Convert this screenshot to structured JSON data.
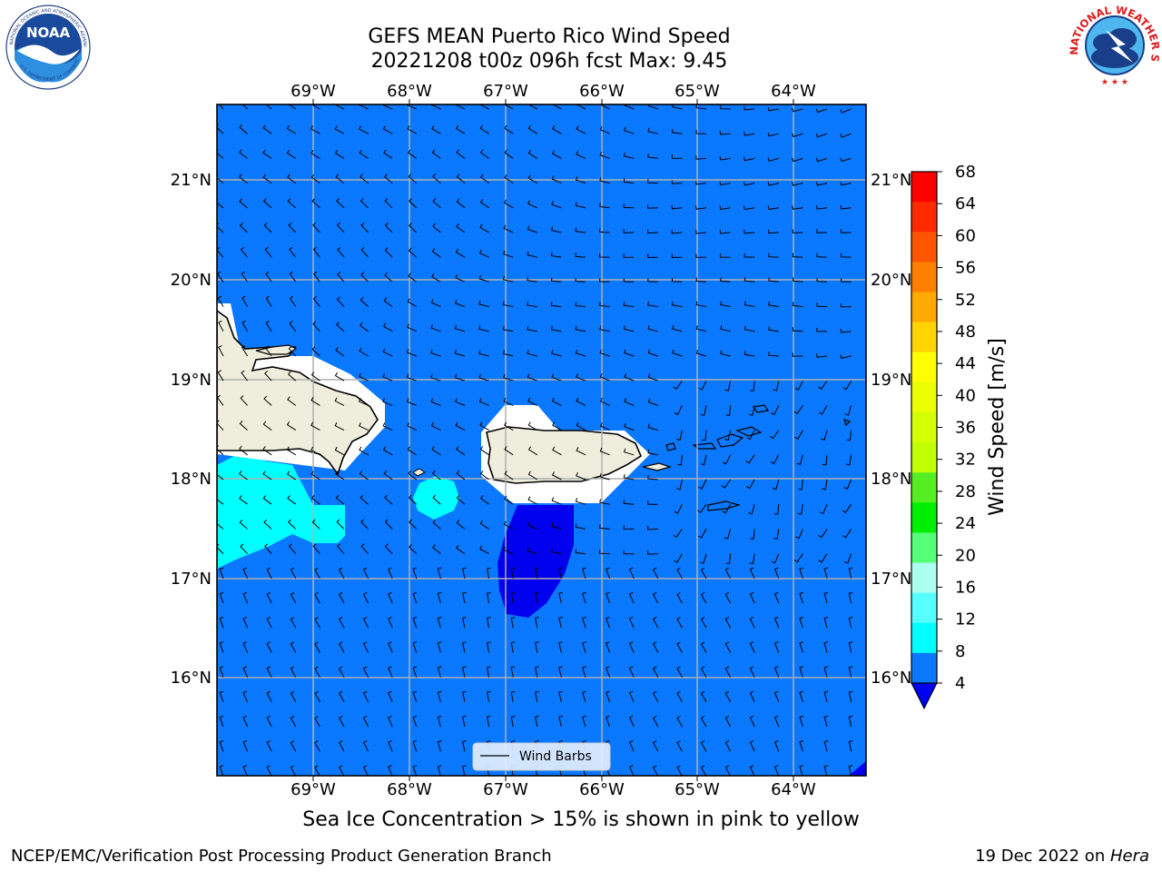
{
  "header": {
    "title_line1": "GEFS MEAN Puerto Rico Wind Speed",
    "title_line2": "20221208 t00z 096h fcst   Max: 9.45"
  },
  "logos": {
    "left_name": "NOAA",
    "left_ring_text": "NATIONAL OCEANIC AND ATMOSPHERIC ADMINISTRATION",
    "left_bottom_text": "U.S. DEPARTMENT OF COMMERCE",
    "right_ring_text": "NATIONAL WEATHER SERVICE"
  },
  "map": {
    "lon_labels": [
      "69°W",
      "68°W",
      "67°W",
      "66°W",
      "65°W",
      "64°W"
    ],
    "lat_labels": [
      "21°N",
      "20°N",
      "19°N",
      "18°N",
      "17°N",
      "16°N"
    ],
    "legend_label": "Wind Barbs",
    "background_color": "#0a78ff",
    "contour_colors": {
      "below_4": "#0000ee",
      "8_12": "#00ffff",
      "land": "#efeedd",
      "mask": "#ffffff"
    }
  },
  "colorbar": {
    "label": "Wind Speed [m/s]",
    "ticks": [
      "68",
      "64",
      "60",
      "56",
      "52",
      "48",
      "44",
      "40",
      "36",
      "32",
      "28",
      "24",
      "20",
      "16",
      "12",
      "8",
      "4"
    ],
    "colors_top_to_bottom": [
      "#ff0000",
      "#ff2a00",
      "#ff5500",
      "#ff7f00",
      "#ffaa00",
      "#ffd400",
      "#ffff00",
      "#eaff00",
      "#d4ff00",
      "#bfff00",
      "#55ee22",
      "#00ee00",
      "#55ff77",
      "#aaffee",
      "#55ffff",
      "#00ffff",
      "#0a78ff"
    ],
    "extend_color": "#0000ee"
  },
  "note": "Sea Ice Concentration > 15% is shown in pink to yellow",
  "footer": {
    "left": "NCEP/EMC/Verification Post Processing Product Generation Branch",
    "right_prefix": "19 Dec 2022 on ",
    "right_machine": "Hera"
  }
}
